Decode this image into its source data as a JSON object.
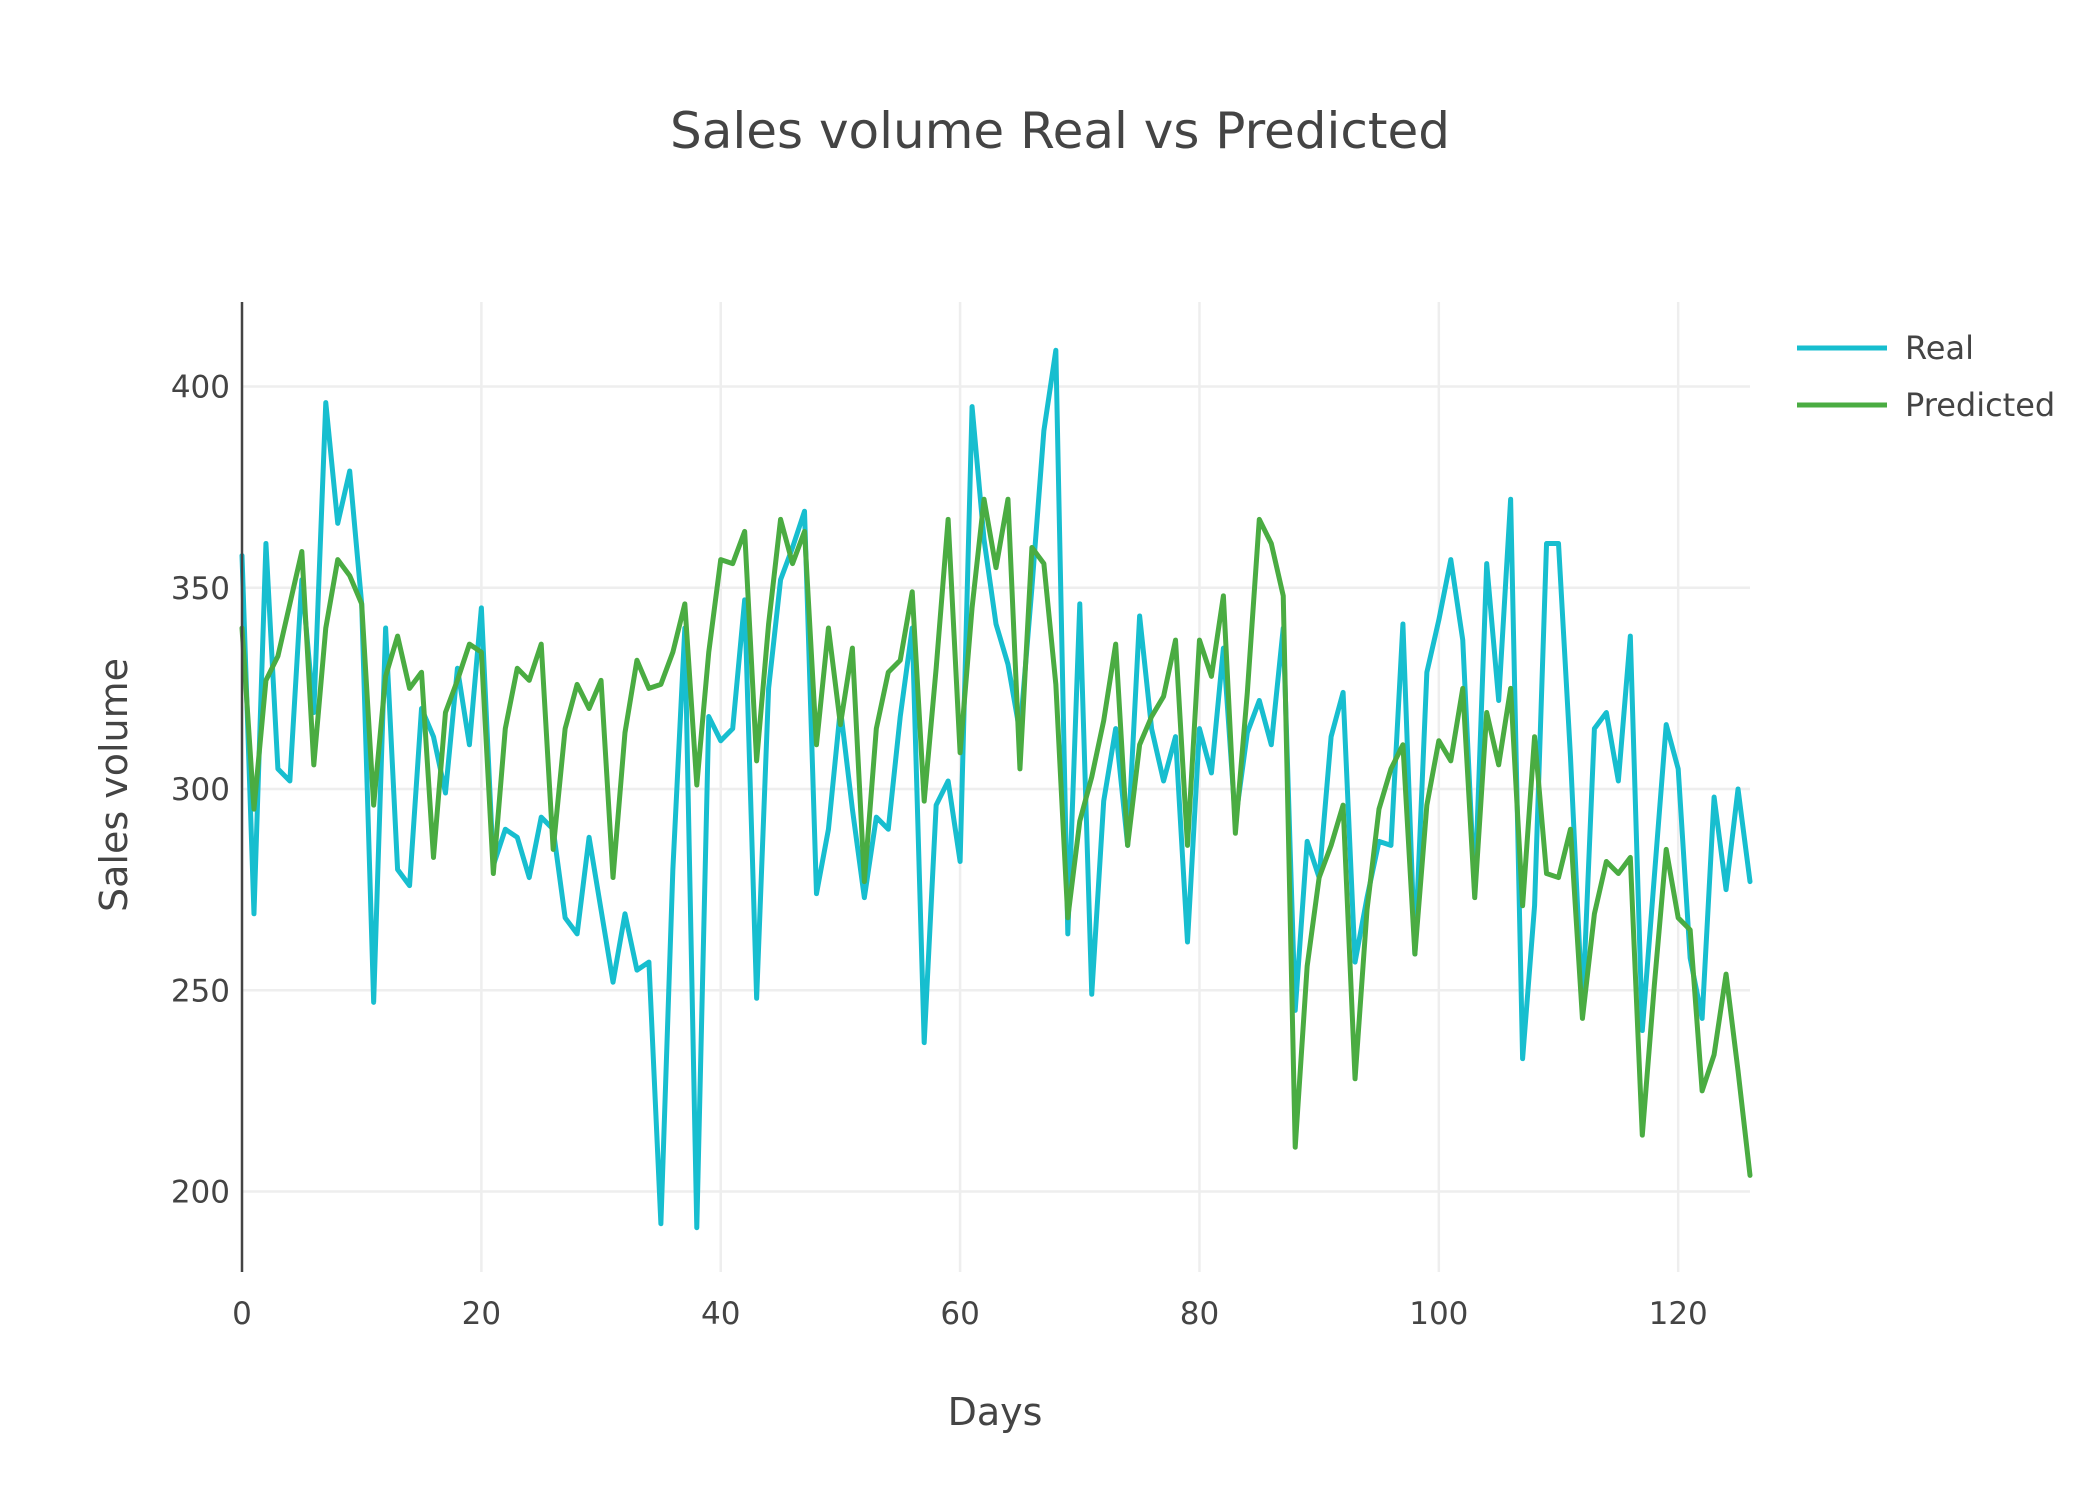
{
  "chart_data": {
    "type": "line",
    "title": "Sales volume Real vs Predicted",
    "xlabel": "Days",
    "ylabel": "Sales volume",
    "xlim": [
      0,
      126
    ],
    "ylim": [
      180,
      421
    ],
    "x_ticks": [
      0,
      20,
      40,
      60,
      80,
      100,
      120
    ],
    "y_ticks": [
      200,
      250,
      300,
      350,
      400
    ],
    "grid": true,
    "legend": "top-right",
    "series": [
      {
        "name": "Real",
        "color": "#17becf",
        "values": [
          358,
          269,
          361,
          305,
          302,
          352,
          319,
          396,
          366,
          379,
          346,
          247,
          340,
          280,
          276,
          320,
          313,
          299,
          330,
          311,
          345,
          281,
          290,
          288,
          278,
          293,
          290,
          268,
          264,
          288,
          270,
          252,
          269,
          255,
          257,
          192,
          280,
          340,
          191,
          318,
          312,
          315,
          347,
          248,
          325,
          352,
          360,
          369,
          274,
          290,
          320,
          295,
          273,
          293,
          290,
          318,
          340,
          237,
          296,
          302,
          282,
          395,
          362,
          341,
          331,
          314,
          350,
          389,
          409,
          264,
          346,
          249,
          297,
          315,
          286,
          343,
          315,
          302,
          313,
          262,
          315,
          304,
          335,
          292,
          314,
          322,
          311,
          340,
          245,
          287,
          278,
          313,
          324,
          257,
          273,
          287,
          286,
          341,
          259,
          329,
          342,
          357,
          337,
          274,
          356,
          322,
          372,
          233,
          271,
          361,
          361,
          308,
          245,
          315,
          319,
          302,
          338,
          240,
          278,
          316,
          305,
          258,
          243,
          298,
          275,
          300,
          277
        ]
      },
      {
        "name": "Predicted",
        "color": "#4aac42",
        "values": [
          340,
          295,
          327,
          333,
          346,
          359,
          306,
          340,
          357,
          353,
          346,
          296,
          328,
          338,
          325,
          329,
          283,
          319,
          327,
          336,
          334,
          279,
          315,
          330,
          327,
          336,
          285,
          315,
          326,
          320,
          327,
          278,
          314,
          332,
          325,
          326,
          334,
          346,
          301,
          334,
          357,
          356,
          364,
          307,
          341,
          367,
          356,
          364,
          311,
          340,
          316,
          335,
          277,
          315,
          329,
          332,
          349,
          297,
          330,
          367,
          309,
          345,
          372,
          355,
          372,
          305,
          360,
          356,
          326,
          268,
          292,
          303,
          317,
          336,
          286,
          311,
          318,
          323,
          337,
          286,
          337,
          328,
          348,
          289,
          324,
          367,
          361,
          348,
          211,
          256,
          278,
          286,
          296,
          228,
          270,
          295,
          305,
          311,
          259,
          296,
          312,
          307,
          325,
          273,
          319,
          306,
          325,
          271,
          313,
          279,
          278,
          290,
          243,
          269,
          282,
          279,
          283,
          214,
          251,
          285,
          268,
          265,
          225,
          234,
          254,
          230,
          204
        ]
      }
    ]
  }
}
